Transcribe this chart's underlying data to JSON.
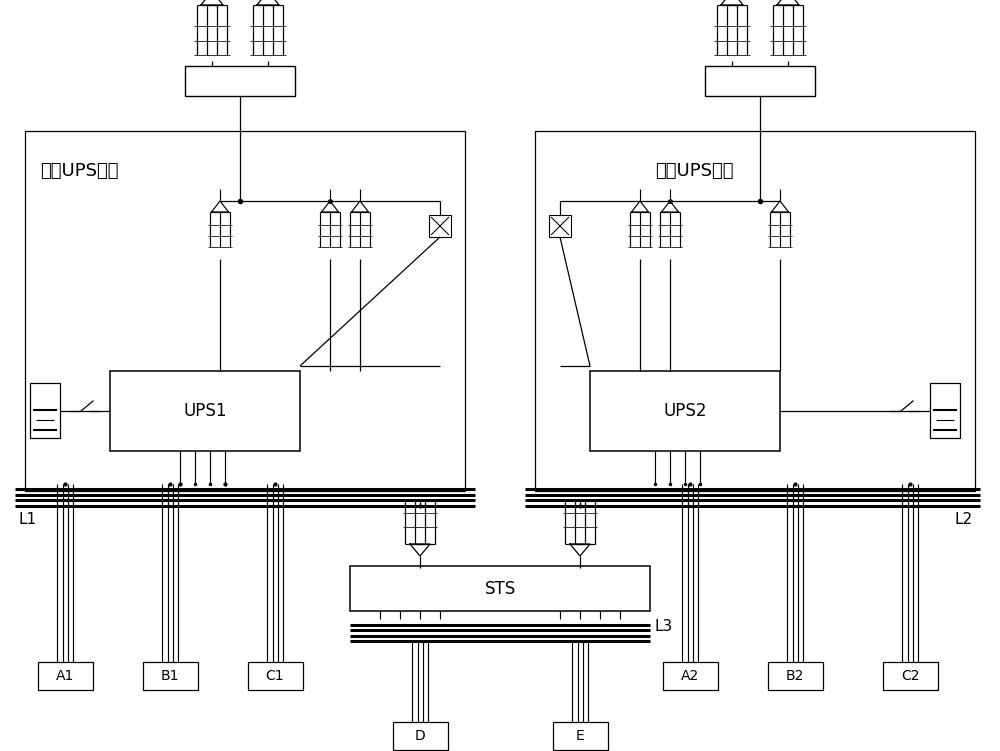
{
  "bg_color": "#ffffff",
  "module1_label": "第一UPS模块",
  "module2_label": "第二UPS模块",
  "ups1_label": "UPS1",
  "ups2_label": "UPS2",
  "sts_label": "STS",
  "L1_label": "L1",
  "L2_label": "L2",
  "L3_label": "L3",
  "terminals_left": [
    "A1",
    "B1",
    "C1"
  ],
  "terminals_right": [
    "A2",
    "B2",
    "C2"
  ],
  "terminals_bottom": [
    "D",
    "E"
  ],
  "font_size_label": 13,
  "font_size_box": 12,
  "font_size_term": 10,
  "font_size_bus": 11
}
